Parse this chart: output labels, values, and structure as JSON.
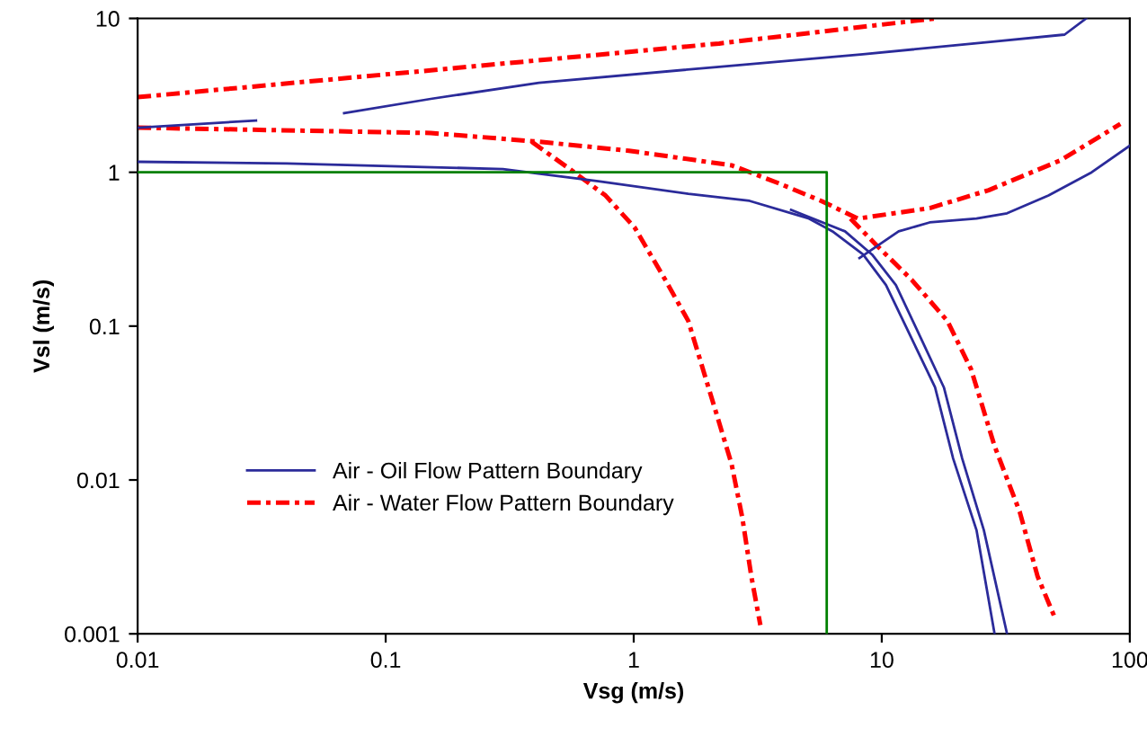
{
  "chart_data": {
    "type": "line",
    "xlabel": "Vsg (m/s)",
    "ylabel": "Vsl (m/s)",
    "log": "xy",
    "xlim": [
      0.01,
      100
    ],
    "ylim": [
      0.001,
      10
    ],
    "xticks": [
      0.01,
      0.1,
      1,
      10,
      100
    ],
    "yticks": [
      0.001,
      0.01,
      0.1,
      1,
      10
    ],
    "grid": false,
    "legend": "bottom left",
    "series": [
      {
        "name": "Air - Oil Flow Pattern Boundary",
        "color": "#2b2b9a",
        "line_style": "solid",
        "x": [
          0.01,
          0.03,
          0.04,
          0.068,
          0.152,
          0.415,
          2.21,
          8.4,
          28,
          54.6,
          66.7
        ],
        "values": [
          1.95,
          2.17,
          null,
          2.42,
          3.0,
          3.81,
          4.85,
          5.85,
          7.06,
          7.85,
          10
        ]
      },
      {
        "color": "#2b2b9a",
        "line_style": "solid",
        "x": [
          0.01,
          0.04,
          0.297,
          0.72,
          1.66,
          2.93,
          5.09,
          6.33,
          8.41,
          10.4,
          13.2,
          16.4,
          19.4,
          24.1,
          28.5
        ],
        "values": [
          1.17,
          1.14,
          1.05,
          0.875,
          0.725,
          0.652,
          0.5,
          0.413,
          0.292,
          0.185,
          0.083,
          0.04,
          0.0138,
          0.00472,
          0.001
        ]
      },
      {
        "color": "#2b2b9a",
        "line_style": "solid",
        "x": [
          4.31,
          7.11,
          9.14,
          11.4,
          14.4,
          17.8,
          21.1,
          25.8,
          32
        ],
        "values": [
          0.57,
          0.413,
          0.292,
          0.185,
          0.083,
          0.04,
          0.0138,
          0.00472,
          0.001
        ]
      },
      {
        "color": "#2b2b9a",
        "line_style": "solid",
        "x": [
          8.13,
          11.7,
          15.6,
          24.1,
          32,
          47,
          70.2,
          100
        ],
        "values": [
          0.277,
          0.413,
          0.472,
          0.5,
          0.541,
          0.706,
          1.0,
          1.49
        ]
      },
      {
        "name": "Air - Water Flow Pattern Boundary",
        "color": "#ff0000",
        "line_style": "dashed",
        "x": [
          0.01,
          0.152,
          2.21,
          16.4
        ],
        "values": [
          3.08,
          4.6,
          6.87,
          10
        ]
      },
      {
        "color": "#ff0000",
        "line_style": "dashed",
        "x": [
          0.01,
          0.152,
          0.415,
          0.957,
          2.48,
          3.83,
          5.72,
          8.0,
          15.6,
          27,
          52.8,
          91.6
        ],
        "values": [
          1.95,
          1.8,
          1.58,
          1.38,
          1.11,
          0.85,
          0.65,
          0.5,
          0.585,
          0.765,
          1.2,
          2.06
        ]
      },
      {
        "color": "#ff0000",
        "line_style": "dashed",
        "x": [
          7.48,
          9.4,
          13.2,
          18.4,
          22.9,
          28.5,
          36,
          42.5,
          50.2
        ],
        "values": [
          0.5,
          0.343,
          0.2,
          0.108,
          0.0526,
          0.0166,
          0.0062,
          0.00236,
          0.00124
        ]
      },
      {
        "color": "#ff0000",
        "line_style": "dashed",
        "x": [
          0.388,
          0.552,
          0.77,
          1.01,
          1.34,
          1.66,
          2.21,
          2.48,
          2.74,
          2.98,
          3.24
        ],
        "values": [
          1.58,
          1.05,
          0.706,
          0.436,
          0.2,
          0.108,
          0.0236,
          0.0127,
          0.0057,
          0.00236,
          0.00114
        ]
      },
      {
        "color": "#008000",
        "line_style": "solid",
        "x": [
          0.01,
          6,
          6
        ],
        "values": [
          1,
          1,
          0.001
        ]
      }
    ]
  }
}
